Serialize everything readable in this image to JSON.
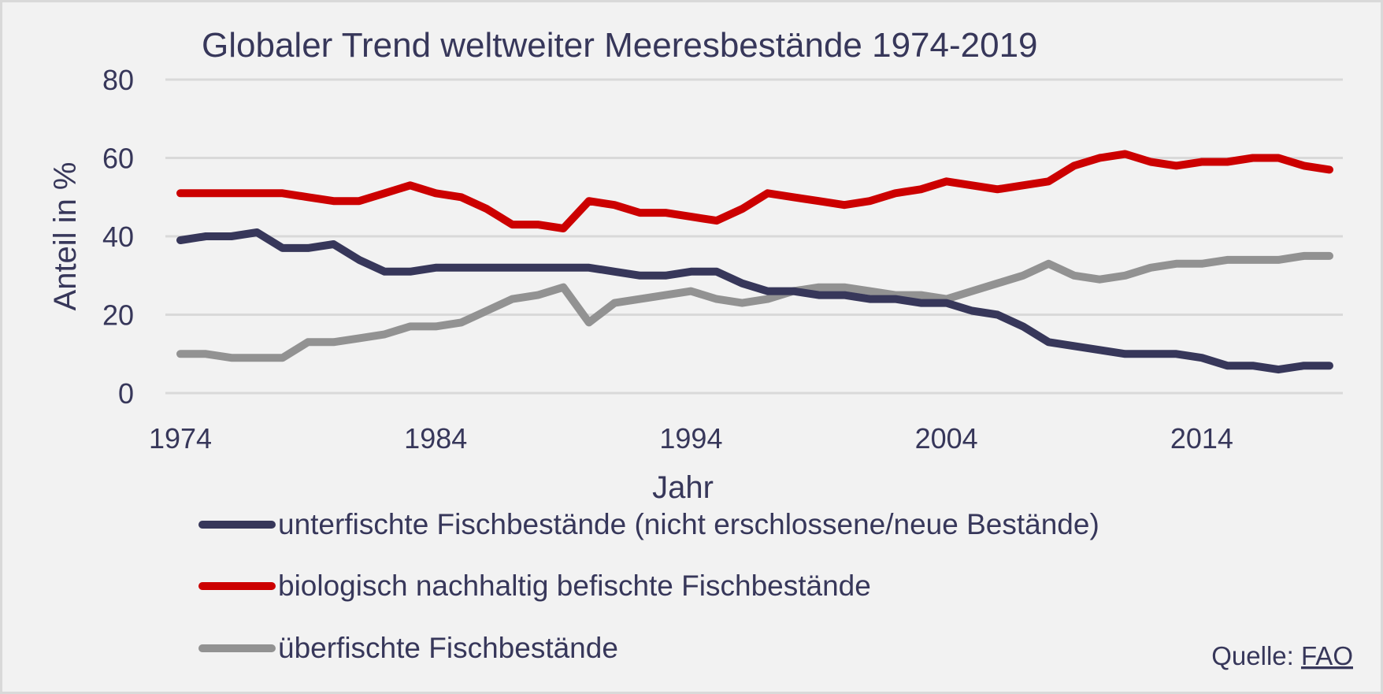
{
  "chart_data": {
    "type": "line",
    "title": "Globaler Trend weltweiter Meeresbestände 1974-2019",
    "xlabel": "Jahr",
    "ylabel": "Anteil in %",
    "xlim": [
      1974,
      2019
    ],
    "ylim": [
      0,
      80
    ],
    "grid": true,
    "yticks": [
      0,
      20,
      40,
      60,
      80
    ],
    "xticks": [
      1974,
      1984,
      1994,
      2004,
      2014
    ],
    "legend_position": "bottom-left",
    "x": [
      1974,
      1975,
      1976,
      1977,
      1978,
      1979,
      1980,
      1981,
      1982,
      1983,
      1984,
      1985,
      1986,
      1987,
      1988,
      1989,
      1990,
      1991,
      1992,
      1993,
      1994,
      1995,
      1996,
      1997,
      1998,
      1999,
      2000,
      2001,
      2002,
      2003,
      2004,
      2005,
      2006,
      2007,
      2008,
      2009,
      2010,
      2011,
      2012,
      2013,
      2014,
      2015,
      2016,
      2017,
      2018,
      2019
    ],
    "series": [
      {
        "name": "unterfischte Fischbestände (nicht erschlossene/neue Bestände)",
        "color": "#37375a",
        "values": [
          39,
          40,
          40,
          41,
          37,
          37,
          38,
          34,
          31,
          31,
          32,
          32,
          32,
          32,
          32,
          32,
          32,
          31,
          30,
          30,
          31,
          31,
          28,
          26,
          26,
          25,
          25,
          24,
          24,
          23,
          23,
          21,
          20,
          17,
          13,
          12,
          11,
          10,
          10,
          10,
          9,
          7,
          7,
          6,
          7,
          7
        ]
      },
      {
        "name": "biologisch nachhaltig befischte Fischbestände",
        "color": "#cc0000",
        "values": [
          51,
          51,
          51,
          51,
          51,
          50,
          49,
          49,
          51,
          53,
          51,
          50,
          47,
          43,
          43,
          42,
          49,
          48,
          46,
          46,
          45,
          44,
          47,
          51,
          50,
          49,
          48,
          49,
          51,
          52,
          54,
          53,
          52,
          53,
          54,
          58,
          60,
          61,
          59,
          58,
          59,
          59,
          60,
          60,
          58,
          57
        ]
      },
      {
        "name": "überfischte Fischbestände",
        "color": "#929292",
        "values": [
          10,
          10,
          9,
          9,
          9,
          13,
          13,
          14,
          15,
          17,
          17,
          18,
          21,
          24,
          25,
          27,
          18,
          23,
          24,
          25,
          26,
          24,
          23,
          24,
          26,
          27,
          27,
          26,
          25,
          25,
          24,
          26,
          28,
          30,
          33,
          30,
          29,
          30,
          32,
          33,
          33,
          34,
          34,
          34,
          35,
          35
        ]
      }
    ],
    "source_label": "Quelle: ",
    "source_link": "FAO"
  },
  "colors": {
    "background": "#f2f2f2",
    "border": "#d9d9d9",
    "text": "#37375a",
    "grid": "#d9d9d9"
  }
}
